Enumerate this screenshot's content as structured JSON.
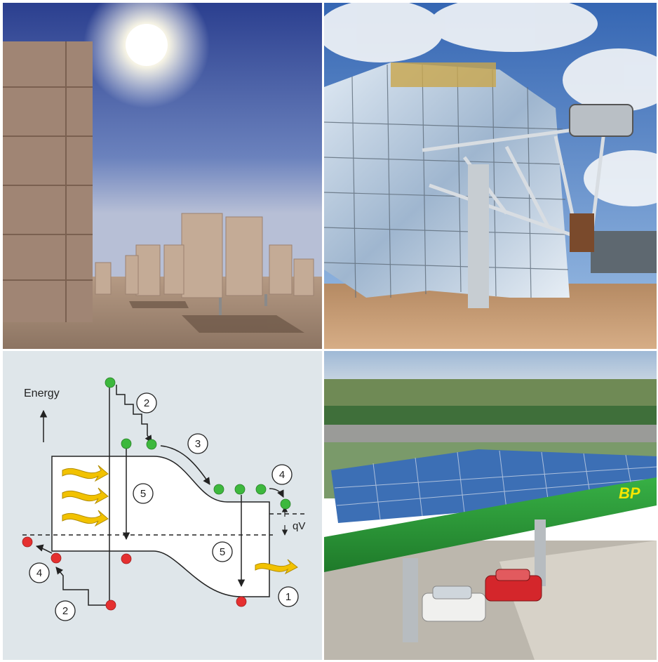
{
  "panels": {
    "heliostat_field": {
      "name": "heliostat-field-photo"
    },
    "dish_concentrator": {
      "name": "dish-concentrator-photo"
    },
    "band_diagram": {
      "energy_label": "Energy",
      "qv_label": "qV",
      "markers": [
        "1",
        "2",
        "2",
        "3",
        "4",
        "4",
        "5",
        "5"
      ]
    },
    "bp_station": {
      "logo_text": "BP"
    }
  },
  "colors": {
    "electron": "#3db83d",
    "hole": "#e53030",
    "photon_arrow": "#f2c200",
    "canopy_green": "#2f9e3a",
    "sky_blue": "#3c6fb5"
  }
}
